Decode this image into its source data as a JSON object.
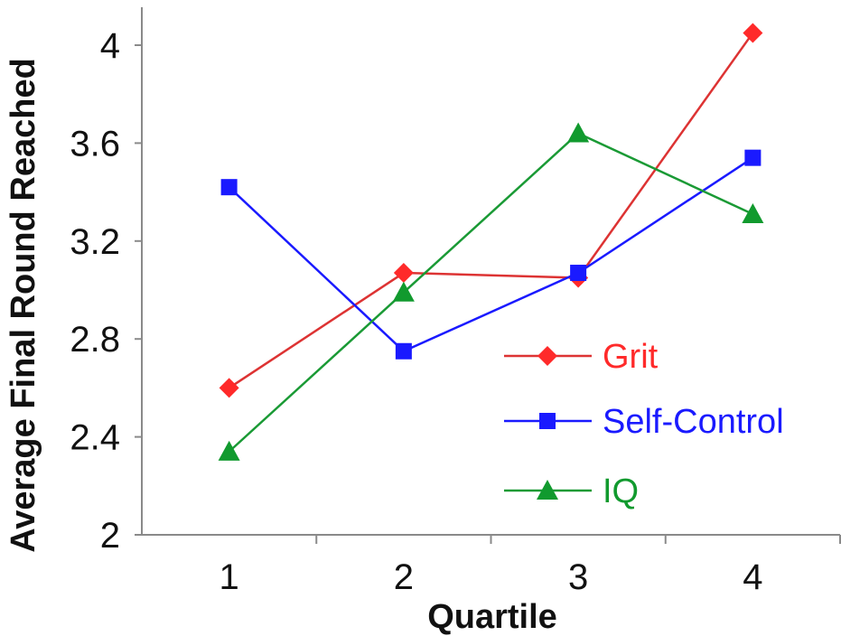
{
  "chart_data": {
    "type": "line",
    "title": "",
    "xlabel": "Quartile",
    "ylabel": "Average Final Round Reached",
    "categories": [
      "1",
      "2",
      "3",
      "4"
    ],
    "yticks": [
      "2",
      "2.4",
      "2.8",
      "3.2",
      "3.6",
      "4"
    ],
    "ylim": [
      2,
      4.1
    ],
    "grid": false,
    "legend_position": "lower-right",
    "series": [
      {
        "name": "Grit",
        "values": [
          2.6,
          3.07,
          3.05,
          4.05
        ],
        "color": "#ff2a2a",
        "line_color": "#dd3333",
        "marker": "diamond"
      },
      {
        "name": "Self-Control",
        "values": [
          3.42,
          2.75,
          3.07,
          3.54
        ],
        "color": "#1a1aff",
        "line_color": "#1a1aff",
        "marker": "square"
      },
      {
        "name": "IQ",
        "values": [
          2.34,
          2.99,
          3.64,
          3.31
        ],
        "color": "#119a2e",
        "line_color": "#1a9a35",
        "marker": "triangle"
      }
    ]
  }
}
